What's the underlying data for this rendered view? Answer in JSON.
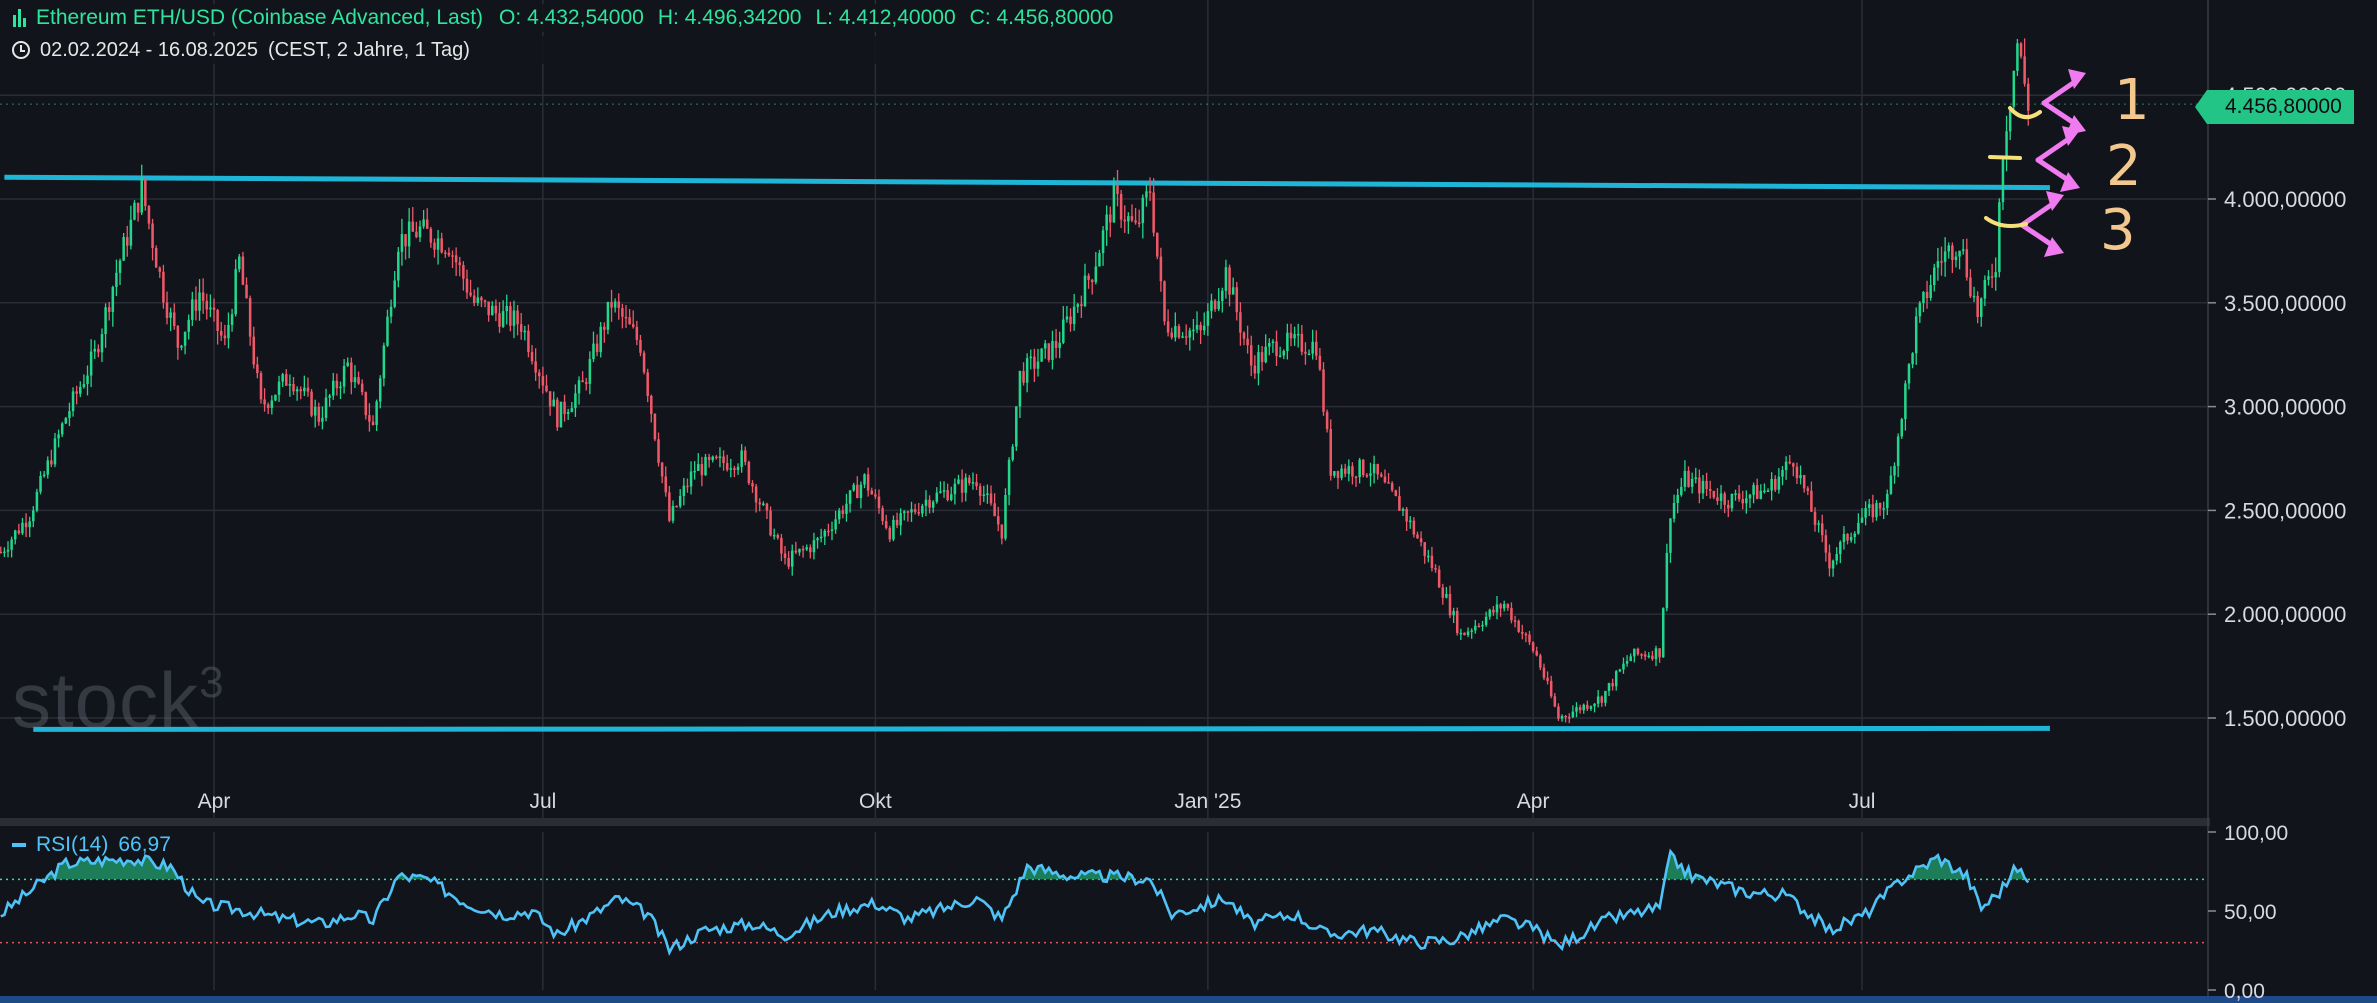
{
  "header": {
    "symbol": "Ethereum ETH/USD (Coinbase Advanced, Last)",
    "open_label": "O:",
    "open": "4.432,54000",
    "high_label": "H:",
    "high": "4.496,34200",
    "low_label": "L:",
    "low": "4.412,40000",
    "close_label": "C:",
    "close": "4.456,80000",
    "range": "02.02.2024 - 16.08.2025",
    "interval": "(CEST, 2 Jahre, 1 Tag)"
  },
  "last_price_tag": "4.456,80000",
  "watermark": "stock",
  "watermark_sup": "3",
  "rsi_legend": {
    "name": "RSI(14)",
    "value": "66,97"
  },
  "annotations": [
    "1",
    "2",
    "3"
  ],
  "colors": {
    "background": "#12141b",
    "up": "#22d68c",
    "down": "#ef5868",
    "grid": "#2a2d36",
    "trendline": "#1fb5d6",
    "rsi": "#4fc3f7",
    "rsi_fill": "#1f8f63",
    "arrow": "#f07af0",
    "bracket": "#f5e07a",
    "overbought": "#2ee59d",
    "oversold": "#e05555"
  },
  "chart_data": [
    {
      "type": "candlestick",
      "title": "Ethereum ETH/USD (Coinbase Advanced, Last)",
      "x_tick_labels": [
        "Apr",
        "Jul",
        "Okt",
        "Jan '25",
        "Apr",
        "Jul"
      ],
      "x_tick_dates": [
        "2024-04-01",
        "2024-07-01",
        "2024-10-01",
        "2025-01-01",
        "2025-04-01",
        "2025-07-01"
      ],
      "x_range": [
        "2024-02-02",
        "2025-08-16"
      ],
      "y_tick_labels": [
        "1.500,00000",
        "2.000,00000",
        "2.500,00000",
        "3.000,00000",
        "3.500,00000",
        "4.000,00000",
        "4.500,00000"
      ],
      "y_ticks": [
        1500,
        2000,
        2500,
        3000,
        3500,
        4000,
        4500
      ],
      "ylim": [
        1290,
        4760
      ],
      "grid": true,
      "horizontal_lines": [
        {
          "from": [
            "2024-02-03",
            4105
          ],
          "to": [
            "2025-08-22",
            4055
          ]
        },
        {
          "from": [
            "2024-02-11",
            1445
          ],
          "to": [
            "2025-08-22",
            1450
          ]
        }
      ],
      "price_path": [
        [
          "2024-02-02",
          2300
        ],
        [
          "2024-02-10",
          2480
        ],
        [
          "2024-02-20",
          2950
        ],
        [
          "2024-02-28",
          3250
        ],
        [
          "2024-03-05",
          3650
        ],
        [
          "2024-03-12",
          4050
        ],
        [
          "2024-03-18",
          3550
        ],
        [
          "2024-03-22",
          3300
        ],
        [
          "2024-03-28",
          3550
        ],
        [
          "2024-04-04",
          3300
        ],
        [
          "2024-04-08",
          3700
        ],
        [
          "2024-04-14",
          3000
        ],
        [
          "2024-04-22",
          3150
        ],
        [
          "2024-04-30",
          2950
        ],
        [
          "2024-05-08",
          3200
        ],
        [
          "2024-05-15",
          2900
        ],
        [
          "2024-05-22",
          3800
        ],
        [
          "2024-05-28",
          3850
        ],
        [
          "2024-06-05",
          3780
        ],
        [
          "2024-06-12",
          3500
        ],
        [
          "2024-06-18",
          3450
        ],
        [
          "2024-06-25",
          3400
        ],
        [
          "2024-07-05",
          2950
        ],
        [
          "2024-07-12",
          3100
        ],
        [
          "2024-07-20",
          3500
        ],
        [
          "2024-07-28",
          3300
        ],
        [
          "2024-08-05",
          2450
        ],
        [
          "2024-08-12",
          2700
        ],
        [
          "2024-08-25",
          2750
        ],
        [
          "2024-09-06",
          2250
        ],
        [
          "2024-09-15",
          2350
        ],
        [
          "2024-09-28",
          2650
        ],
        [
          "2024-10-05",
          2400
        ],
        [
          "2024-10-15",
          2550
        ],
        [
          "2024-10-29",
          2650
        ],
        [
          "2024-11-05",
          2400
        ],
        [
          "2024-11-10",
          3150
        ],
        [
          "2024-11-20",
          3300
        ],
        [
          "2024-11-30",
          3650
        ],
        [
          "2024-12-06",
          4000
        ],
        [
          "2024-12-12",
          3850
        ],
        [
          "2024-12-16",
          4050
        ],
        [
          "2024-12-20",
          3400
        ],
        [
          "2024-12-30",
          3350
        ],
        [
          "2025-01-06",
          3650
        ],
        [
          "2025-01-13",
          3200
        ],
        [
          "2025-01-20",
          3300
        ],
        [
          "2025-01-31",
          3300
        ],
        [
          "2025-02-04",
          2700
        ],
        [
          "2025-02-15",
          2700
        ],
        [
          "2025-02-24",
          2500
        ],
        [
          "2025-03-05",
          2200
        ],
        [
          "2025-03-12",
          1900
        ],
        [
          "2025-03-24",
          2050
        ],
        [
          "2025-04-02",
          1800
        ],
        [
          "2025-04-08",
          1500
        ],
        [
          "2025-04-20",
          1600
        ],
        [
          "2025-04-28",
          1800
        ],
        [
          "2025-05-06",
          1820
        ],
        [
          "2025-05-09",
          2500
        ],
        [
          "2025-05-13",
          2650
        ],
        [
          "2025-05-25",
          2550
        ],
        [
          "2025-06-05",
          2600
        ],
        [
          "2025-06-12",
          2750
        ],
        [
          "2025-06-22",
          2250
        ],
        [
          "2025-06-30",
          2450
        ],
        [
          "2025-07-08",
          2550
        ],
        [
          "2025-07-16",
          3400
        ],
        [
          "2025-07-22",
          3700
        ],
        [
          "2025-07-28",
          3800
        ],
        [
          "2025-08-02",
          3450
        ],
        [
          "2025-08-07",
          3700
        ],
        [
          "2025-08-09",
          4250
        ],
        [
          "2025-08-13",
          4750
        ],
        [
          "2025-08-16",
          4456.8
        ]
      ],
      "last_close": 4456.8
    },
    {
      "type": "line",
      "title": "RSI(14)",
      "y_tick_labels": [
        "0,00",
        "50,00",
        "100,00"
      ],
      "y_ticks": [
        0,
        50,
        100
      ],
      "ylim": [
        0,
        100
      ],
      "bands": {
        "overbought": 70,
        "oversold": 30
      },
      "x_range": [
        "2024-02-02",
        "2025-08-16"
      ],
      "rsi_path": [
        [
          "2024-02-02",
          48
        ],
        [
          "2024-02-12",
          66
        ],
        [
          "2024-02-20",
          80
        ],
        [
          "2024-03-01",
          82
        ],
        [
          "2024-03-10",
          83
        ],
        [
          "2024-03-20",
          78
        ],
        [
          "2024-03-28",
          55
        ],
        [
          "2024-04-10",
          50
        ],
        [
          "2024-04-20",
          45
        ],
        [
          "2024-05-01",
          42
        ],
        [
          "2024-05-10",
          48
        ],
        [
          "2024-05-15",
          44
        ],
        [
          "2024-05-22",
          72
        ],
        [
          "2024-05-30",
          70
        ],
        [
          "2024-06-10",
          55
        ],
        [
          "2024-06-20",
          48
        ],
        [
          "2024-06-28",
          50
        ],
        [
          "2024-07-05",
          35
        ],
        [
          "2024-07-15",
          48
        ],
        [
          "2024-07-22",
          58
        ],
        [
          "2024-07-30",
          48
        ],
        [
          "2024-08-05",
          26
        ],
        [
          "2024-08-15",
          38
        ],
        [
          "2024-08-28",
          42
        ],
        [
          "2024-09-06",
          35
        ],
        [
          "2024-09-20",
          50
        ],
        [
          "2024-10-01",
          55
        ],
        [
          "2024-10-10",
          45
        ],
        [
          "2024-10-29",
          58
        ],
        [
          "2024-11-05",
          45
        ],
        [
          "2024-11-12",
          78
        ],
        [
          "2024-11-25",
          72
        ],
        [
          "2024-12-05",
          72
        ],
        [
          "2024-12-16",
          70
        ],
        [
          "2024-12-22",
          48
        ],
        [
          "2025-01-06",
          58
        ],
        [
          "2025-01-13",
          42
        ],
        [
          "2025-01-25",
          48
        ],
        [
          "2025-02-03",
          35
        ],
        [
          "2025-02-15",
          38
        ],
        [
          "2025-02-28",
          30
        ],
        [
          "2025-03-10",
          32
        ],
        [
          "2025-03-24",
          45
        ],
        [
          "2025-04-02",
          38
        ],
        [
          "2025-04-08",
          28
        ],
        [
          "2025-04-22",
          45
        ],
        [
          "2025-05-06",
          52
        ],
        [
          "2025-05-09",
          84
        ],
        [
          "2025-05-15",
          72
        ],
        [
          "2025-05-30",
          62
        ],
        [
          "2025-06-10",
          60
        ],
        [
          "2025-06-22",
          38
        ],
        [
          "2025-07-02",
          48
        ],
        [
          "2025-07-12",
          70
        ],
        [
          "2025-07-22",
          84
        ],
        [
          "2025-07-30",
          72
        ],
        [
          "2025-08-03",
          52
        ],
        [
          "2025-08-08",
          62
        ],
        [
          "2025-08-13",
          78
        ],
        [
          "2025-08-16",
          66.97
        ]
      ],
      "last_value": 66.97
    }
  ]
}
